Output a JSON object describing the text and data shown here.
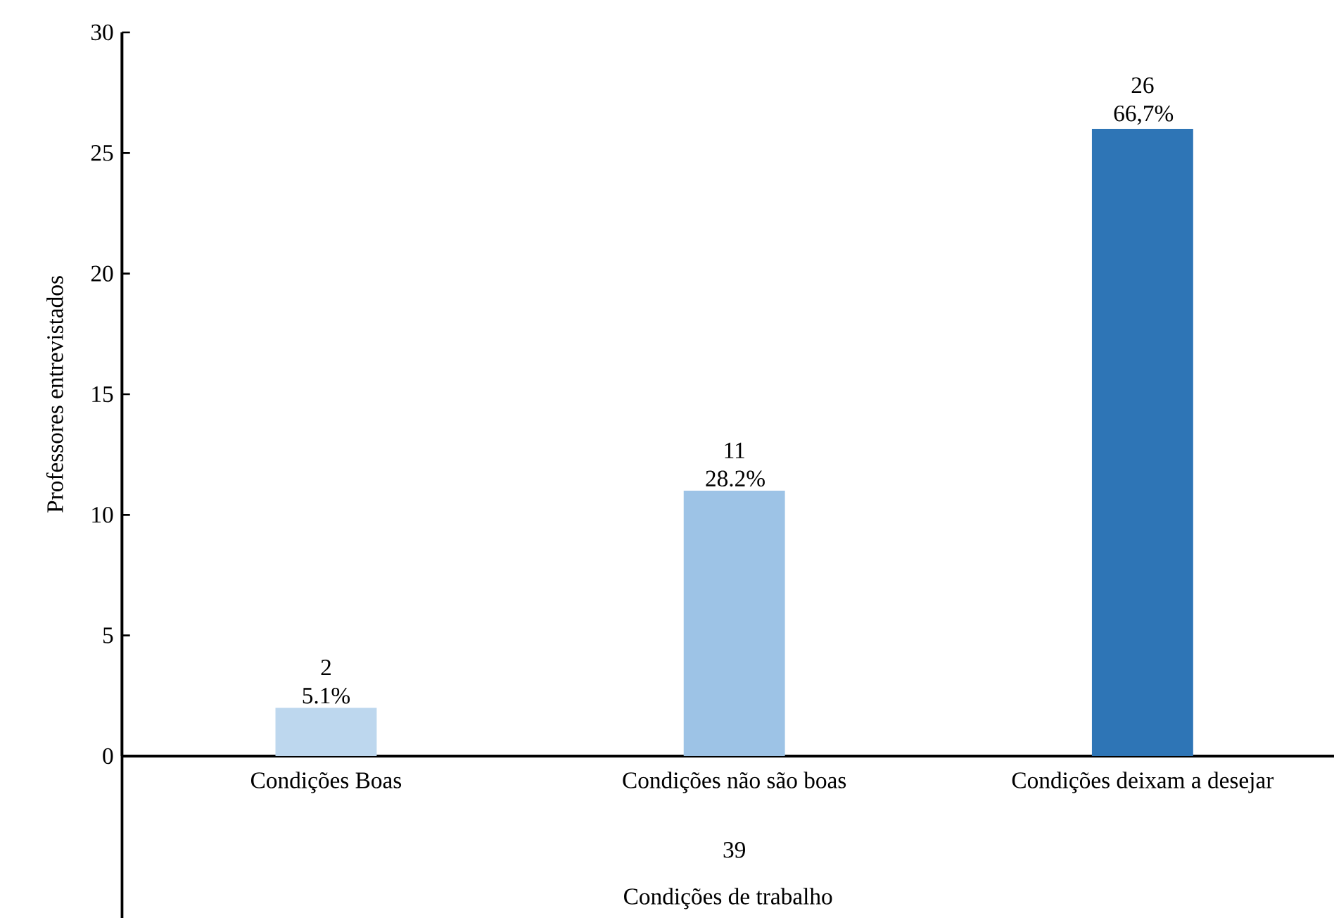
{
  "chart_data": {
    "type": "bar",
    "categories": [
      "Condições Boas",
      "Condições não são boas",
      "Condições deixam a desejar"
    ],
    "values": [
      2,
      11,
      26
    ],
    "colors": [
      "#bdd7ee",
      "#9dc3e6",
      "#2e75b6"
    ],
    "value_labels": [
      "2 5.1%",
      "11 28.2%",
      "26 66,7%"
    ],
    "ylabel": "Professores entrevistados",
    "xlabel": "Condições de trabalho",
    "annotations": [
      "39"
    ],
    "ylim": [
      0,
      30
    ],
    "yticks": [
      0,
      5,
      10,
      15,
      20,
      25,
      30
    ],
    "grid": false
  }
}
